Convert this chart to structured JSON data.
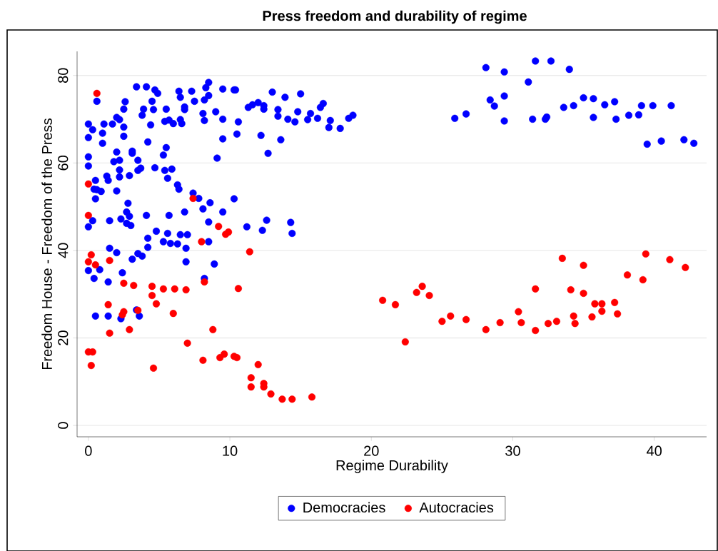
{
  "chart_data": {
    "type": "scatter",
    "title": "Press freedom and durability of regime",
    "xlabel": "Regime Durability",
    "ylabel": "Freedom House - Freedom of the Press",
    "xlim": [
      -0.8,
      43.7
    ],
    "ylim": [
      -2.6,
      85.5
    ],
    "xticks": [
      0,
      10,
      20,
      30,
      40
    ],
    "yticks": [
      0,
      20,
      40,
      60,
      80
    ],
    "grid": "y",
    "legend": "bottom",
    "marker": "circle",
    "series": [
      {
        "name": "Democracies",
        "color": "#0000ff",
        "x": [
          25.9,
          26.7,
          28.1,
          28.4,
          28.7,
          29.4,
          29.4,
          29.4,
          31.1,
          31.4,
          31.6,
          32.3,
          32.4,
          32.7,
          33.6,
          34.0,
          34.3,
          35.0,
          35.7,
          35.7,
          36.5,
          37.2,
          37.3,
          38.2,
          38.9,
          39.1,
          39.5,
          39.9,
          40.5,
          41.2,
          42.1,
          42.8,
          10.4,
          10.3,
          13.0,
          13.9,
          15.0,
          11.3,
          11.6,
          12.0,
          12.4,
          12.4,
          13.4,
          13.4,
          14.1,
          14.6,
          14.8,
          15.7,
          15.5,
          16.2,
          16.4,
          16.6,
          17.1,
          17.0,
          17.8,
          18.4,
          18.7,
          10.6,
          10.5,
          12.2,
          13.6,
          12.7,
          10.3,
          11.2,
          12.6,
          12.3,
          14.3,
          14.4,
          0.6,
          3.4,
          4.1,
          4.7,
          4.9,
          6.4,
          7.3,
          8.5,
          8.3,
          9.5,
          2.6,
          2.5,
          4.5,
          3.9,
          3.8,
          4.6,
          5.5,
          6.5,
          7.5,
          6.8,
          6.8,
          8.2,
          8.5,
          8.1,
          8.2,
          9.0,
          9.5,
          9.5,
          9.1,
          0.0,
          0.3,
          0.0,
          1.1,
          1.0,
          1.0,
          1.7,
          2.0,
          2.2,
          2.5,
          2.5,
          4.4,
          4.2,
          5.4,
          5.7,
          6.0,
          6.5,
          6.6,
          5.5,
          5.3,
          0.0,
          0.0,
          2.0,
          1.8,
          2.2,
          3.1,
          3.1,
          3.5,
          3.5,
          3.7,
          2.9,
          2.2,
          2.2,
          1.3,
          1.4,
          4.7,
          5.4,
          5.6,
          5.9,
          6.3,
          6.4,
          0.5,
          0.4,
          0.6,
          0.9,
          0.5,
          2.0,
          2.8,
          2.7,
          2.9,
          2.3,
          2.7,
          3.0,
          1.5,
          4.1,
          5.7,
          6.8,
          7.4,
          7.8,
          8.6,
          8.1,
          9.5,
          8.5,
          8.5,
          0.3,
          0.0,
          4.8,
          5.6,
          6.5,
          7.0,
          4.2,
          4.2,
          5.3,
          5.8,
          6.3,
          6.9,
          1.5,
          2.0,
          3.5,
          3.8,
          3.1,
          6.9,
          8.9,
          0.0,
          0.8,
          0.4,
          1.4,
          2.4,
          8.2,
          0.5,
          1.4,
          2.3,
          3.4,
          3.6
        ],
        "values": [
          70.2,
          71.2,
          81.8,
          74.4,
          73.0,
          80.8,
          75.3,
          69.6,
          78.5,
          70.0,
          83.3,
          70.0,
          70.5,
          83.3,
          72.7,
          81.4,
          73.1,
          74.9,
          74.7,
          70.4,
          73.3,
          74.0,
          70.0,
          70.9,
          71.0,
          73.1,
          64.3,
          73.1,
          65.0,
          73.1,
          65.3,
          64.5,
          76.7,
          76.7,
          76.2,
          75.0,
          75.8,
          72.7,
          73.3,
          73.8,
          73.1,
          72.3,
          72.2,
          70.7,
          70.0,
          69.4,
          71.7,
          71.3,
          69.9,
          70.2,
          72.7,
          73.6,
          69.7,
          68.1,
          67.9,
          70.2,
          70.9,
          69.4,
          66.6,
          66.3,
          65.3,
          62.2,
          51.8,
          45.4,
          46.9,
          44.6,
          46.4,
          43.9,
          74.1,
          77.4,
          77.4,
          76.7,
          75.9,
          76.4,
          76.4,
          78.4,
          77.2,
          76.9,
          74.0,
          72.3,
          74.1,
          72.3,
          70.9,
          72.2,
          72.3,
          75.0,
          74.1,
          72.8,
          72.2,
          74.4,
          75.4,
          71.3,
          69.7,
          71.7,
          70.0,
          65.5,
          61.1,
          68.9,
          67.6,
          65.8,
          68.9,
          66.8,
          64.5,
          68.9,
          70.4,
          69.9,
          68.2,
          66.1,
          68.7,
          64.8,
          69.5,
          69.8,
          69.0,
          69.9,
          69.0,
          63.5,
          61.8,
          61.4,
          59.3,
          62.5,
          60.3,
          60.6,
          62.2,
          62.7,
          60.6,
          58.3,
          58.8,
          57.1,
          58.4,
          56.8,
          57.0,
          56.0,
          58.9,
          58.3,
          56.5,
          58.6,
          55.0,
          54.0,
          56.0,
          54.0,
          53.9,
          53.5,
          51.8,
          53.6,
          50.8,
          48.8,
          47.8,
          47.2,
          46.2,
          45.7,
          46.8,
          48.0,
          48.0,
          48.8,
          53.1,
          51.9,
          50.9,
          49.5,
          48.8,
          46.5,
          42.0,
          46.8,
          45.4,
          44.4,
          43.9,
          43.6,
          43.6,
          42.8,
          40.7,
          42.0,
          41.6,
          41.5,
          40.5,
          40.5,
          39.5,
          39.3,
          38.7,
          38.0,
          37.4,
          36.9,
          35.4,
          35.6,
          33.6,
          32.8,
          34.9,
          33.6,
          25.0,
          25.0,
          24.4,
          26.4,
          25.0
        ]
      },
      {
        "name": "Autocracies",
        "color": "#ff0000",
        "x": [
          20.8,
          21.7,
          22.4,
          23.2,
          23.6,
          24.1,
          25.0,
          25.6,
          26.7,
          28.1,
          29.1,
          30.4,
          30.6,
          31.6,
          31.6,
          32.5,
          33.1,
          33.5,
          34.1,
          34.3,
          34.4,
          35.0,
          35.0,
          35.6,
          35.8,
          36.3,
          36.3,
          37.2,
          37.4,
          38.1,
          39.2,
          39.4,
          41.1,
          42.2,
          9.7,
          9.9,
          11.4,
          10.6,
          10.3,
          10.5,
          12.0,
          11.5,
          11.5,
          12.4,
          12.4,
          12.9,
          13.7,
          14.4,
          15.8,
          0.6,
          0.0,
          7.4,
          9.2,
          8.0,
          0.0,
          0.2,
          0.0,
          0.5,
          1.5,
          2.5,
          3.2,
          4.5,
          4.5,
          5.3,
          6.1,
          6.9,
          8.2,
          1.4,
          4.8,
          2.5,
          2.4,
          3.5,
          6.0,
          1.5,
          2.9,
          8.8,
          7.0,
          0.0,
          0.3,
          0.2,
          4.6,
          8.1,
          9.3,
          9.6
        ],
        "values": [
          28.6,
          27.6,
          19.1,
          30.4,
          31.8,
          29.7,
          23.8,
          25.0,
          24.2,
          21.9,
          23.5,
          26.0,
          23.5,
          31.2,
          21.7,
          23.3,
          23.8,
          38.2,
          31.0,
          25.0,
          23.3,
          36.6,
          30.2,
          24.8,
          27.8,
          27.8,
          26.1,
          28.1,
          25.5,
          34.4,
          33.3,
          39.2,
          37.9,
          36.1,
          43.7,
          44.2,
          39.7,
          31.3,
          15.8,
          15.5,
          13.9,
          10.9,
          8.8,
          9.6,
          8.8,
          7.2,
          6.0,
          6.0,
          6.5,
          75.9,
          55.2,
          51.9,
          45.5,
          42.0,
          48.0,
          39.0,
          37.4,
          36.7,
          37.7,
          32.5,
          32.0,
          31.8,
          29.7,
          31.2,
          31.2,
          31.0,
          32.8,
          27.6,
          27.8,
          26.0,
          25.3,
          26.3,
          25.6,
          21.1,
          21.9,
          21.9,
          18.8,
          16.8,
          16.8,
          13.7,
          13.1,
          14.9,
          15.5,
          16.3
        ]
      }
    ]
  }
}
